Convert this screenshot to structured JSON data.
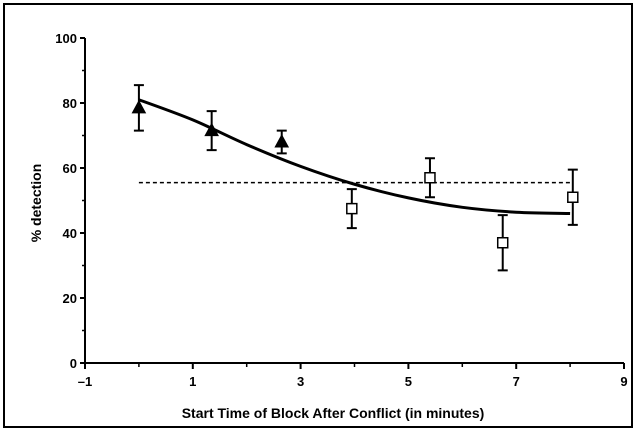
{
  "chart_data": {
    "type": "scatter",
    "title": "",
    "xlabel": "Start Time of Block After Conflict (in minutes)",
    "ylabel": "% detection",
    "xlim": [
      -1,
      9
    ],
    "ylim": [
      0,
      100
    ],
    "xticks": [
      "-1",
      "1",
      "3",
      "5",
      "7",
      "9"
    ],
    "yticks": [
      "0",
      "20",
      "40",
      "60",
      "80",
      "100"
    ],
    "grid": false,
    "series": [
      {
        "marker": "filled-triangle",
        "points": [
          {
            "x": 0.0,
            "y": 78.5,
            "err": 7
          },
          {
            "x": 1.35,
            "y": 71.5,
            "err": 6
          },
          {
            "x": 2.65,
            "y": 68.0,
            "err": 3.5
          }
        ]
      },
      {
        "marker": "open-square",
        "points": [
          {
            "x": 3.95,
            "y": 47.5,
            "err": 6
          },
          {
            "x": 5.4,
            "y": 57.0,
            "err": 6
          },
          {
            "x": 6.75,
            "y": 37.0,
            "err": 8.5
          },
          {
            "x": 8.05,
            "y": 51.0,
            "err": 8.5
          }
        ]
      }
    ],
    "fit_curve": {
      "style": "solid",
      "points": [
        [
          0,
          81
        ],
        [
          1,
          74.8
        ],
        [
          2,
          67.2
        ],
        [
          3,
          60.5
        ],
        [
          4,
          55
        ],
        [
          5,
          50.8
        ],
        [
          6,
          47.9
        ],
        [
          7,
          46.4
        ],
        [
          8,
          46
        ]
      ]
    },
    "reference_line": {
      "style": "dashed",
      "y": 55.5,
      "x_range": [
        0,
        8.05
      ]
    }
  }
}
